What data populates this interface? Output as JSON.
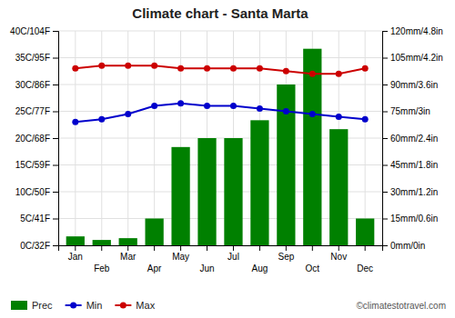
{
  "chart_data": {
    "type": "combo",
    "title": "Climate chart - Santa Marta",
    "categories": [
      "Jan",
      "Feb",
      "Mar",
      "Apr",
      "May",
      "Jun",
      "Jul",
      "Aug",
      "Sep",
      "Oct",
      "Nov",
      "Dec"
    ],
    "series": [
      {
        "name": "Prec",
        "type": "bar",
        "axis": "y2",
        "color": "#008000",
        "values": [
          5,
          3,
          4,
          15,
          55,
          60,
          60,
          70,
          90,
          110,
          65,
          15
        ]
      },
      {
        "name": "Min",
        "type": "line",
        "marker": "circle",
        "color": "#0000cc",
        "values": [
          23,
          23.5,
          24.5,
          26,
          26.5,
          26,
          26,
          25.5,
          25,
          24.5,
          24,
          23.5
        ]
      },
      {
        "name": "Max",
        "type": "line",
        "marker": "circle",
        "color": "#cc0000",
        "values": [
          33,
          33.5,
          33.5,
          33.5,
          33,
          33,
          33,
          33,
          32.5,
          32,
          32,
          33
        ]
      }
    ],
    "ylim": [
      0,
      40
    ],
    "yticks": [
      {
        "value": 0,
        "label": "0C/32F"
      },
      {
        "value": 5,
        "label": "5C/41F"
      },
      {
        "value": 10,
        "label": "10C/50F"
      },
      {
        "value": 15,
        "label": "15C/59F"
      },
      {
        "value": 20,
        "label": "20C/68F"
      },
      {
        "value": 25,
        "label": "25C/77F"
      },
      {
        "value": 30,
        "label": "30C/86F"
      },
      {
        "value": 35,
        "label": "35C/95F"
      },
      {
        "value": 40,
        "label": "40C/104F"
      }
    ],
    "y2lim": [
      0,
      120
    ],
    "y2ticks": [
      {
        "value": 0,
        "label": "0mm/0in"
      },
      {
        "value": 15,
        "label": "15mm/0.6in"
      },
      {
        "value": 30,
        "label": "30mm/1.2in"
      },
      {
        "value": 45,
        "label": "45mm/1.8in"
      },
      {
        "value": 60,
        "label": "60mm/2.4in"
      },
      {
        "value": 75,
        "label": "75mm/3in"
      },
      {
        "value": 90,
        "label": "90mm/3.6in"
      },
      {
        "value": 105,
        "label": "105mm/4.2in"
      },
      {
        "value": 120,
        "label": "120mm/4.8in"
      }
    ],
    "grid": true,
    "legend": "bottom",
    "annotations": [
      "©climatestotravel.com"
    ]
  }
}
